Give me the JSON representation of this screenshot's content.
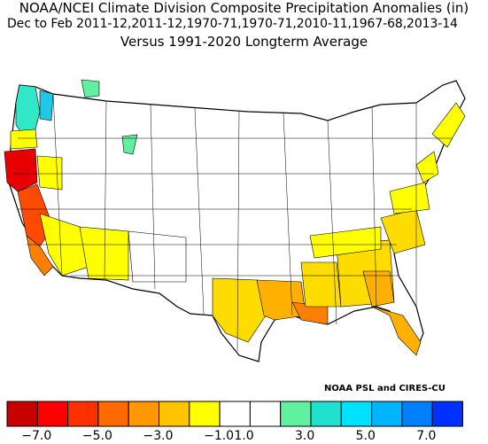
{
  "header": {
    "title": "NOAA/NCEI Climate Division Composite Precipitation Anomalies (in)",
    "subtitle": "Dec to Feb  2011-12,2011-12,1970-71,1970-71,2010-11,1967-68,2013-14",
    "baseline": "Versus 1991-2020 Longterm Average"
  },
  "credit": "NOAA PSL and CIRES-CU",
  "colorbar": {
    "colors": [
      "#c80000",
      "#ff0000",
      "#ff3000",
      "#ff6a00",
      "#ff9800",
      "#ffc400",
      "#ffff00",
      "#ffffff",
      "#ffffff",
      "#60f0a0",
      "#20e0d0",
      "#00e0ff",
      "#00b4ff",
      "#0080ff",
      "#0030ff"
    ],
    "tick_labels": [
      "−7.0",
      "−5.0",
      "−3.0",
      "−1.0",
      "1.0",
      "3.0",
      "5.0",
      "7.0"
    ]
  },
  "map_regions": [
    {
      "name": "california-coast-north",
      "level": "-7 to -6",
      "color": "#e80000"
    },
    {
      "name": "california-coast-central",
      "level": "-5 to -4",
      "color": "#ff4a00"
    },
    {
      "name": "southern-california",
      "level": "-3 to -2",
      "color": "#ff9800"
    },
    {
      "name": "southwest-interior",
      "level": "-2 to -1",
      "color": "#ffff00"
    },
    {
      "name": "gulf-coast",
      "level": "-3 to -2",
      "color": "#ffb000"
    },
    {
      "name": "southeast",
      "level": "-2 to -1",
      "color": "#ffdc00"
    },
    {
      "name": "pacific-northwest",
      "level": "1 to 3",
      "color": "#30e8c8"
    },
    {
      "name": "idaho-montana",
      "level": "1 to 2",
      "color": "#60f0a0"
    }
  ]
}
